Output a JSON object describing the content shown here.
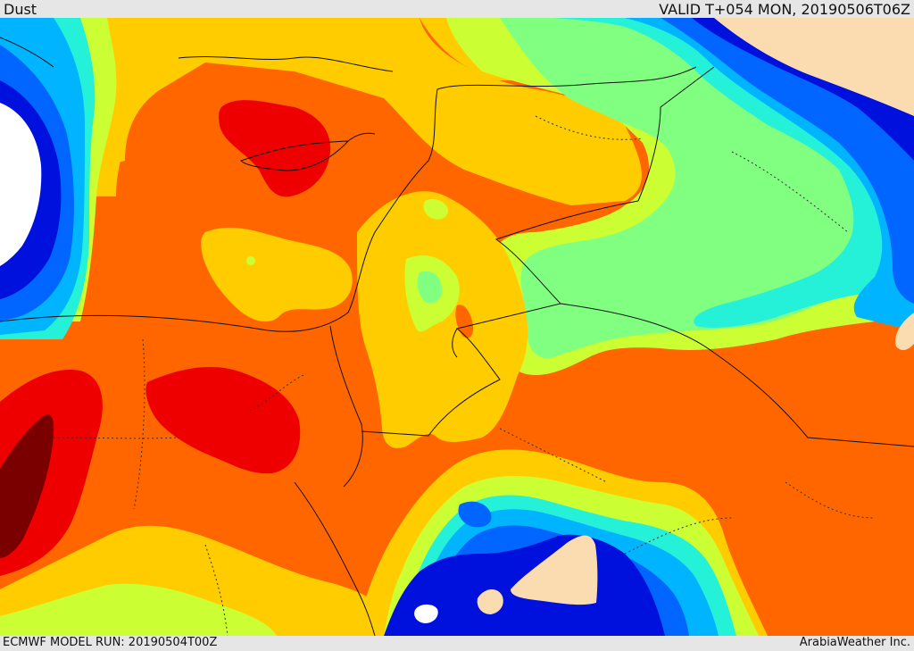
{
  "header": {
    "title": "Dust",
    "valid": "VALID T+054 MON, 20190506T06Z"
  },
  "footer": {
    "model_run": "ECMWF MODEL RUN: 20190504T00Z",
    "credit": "ArabiaWeather Inc."
  },
  "legend_colors": {
    "white": "#ffffff",
    "navy": "#0011dd",
    "blue": "#0066ff",
    "sky": "#00b4ff",
    "cyan": "#25f0d8",
    "green": "#80ff80",
    "lime": "#ccff33",
    "yellow": "#ffcc00",
    "orange": "#ff6600",
    "red": "#ee0000",
    "darkred": "#7a0000",
    "peach": "#fbdcb0"
  }
}
